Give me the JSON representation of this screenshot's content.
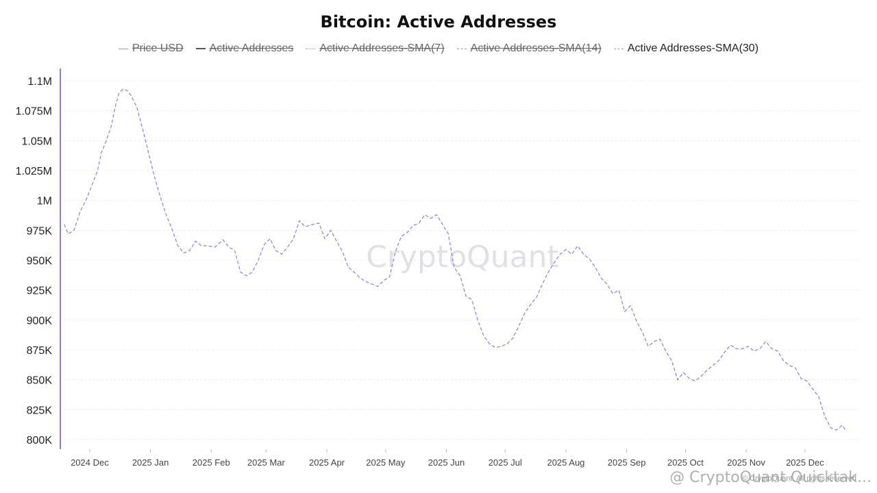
{
  "chart_data": {
    "type": "line",
    "title": "Bitcoin: Active Addresses",
    "legend": [
      {
        "name": "Price USD",
        "enabled": false,
        "style": "solid"
      },
      {
        "name": "Active Addresses",
        "enabled": false,
        "style": "solid"
      },
      {
        "name": "Active Addresses-SMA(7)",
        "enabled": false,
        "style": "dotted"
      },
      {
        "name": "Active Addresses-SMA(14)",
        "enabled": false,
        "style": "dashed"
      },
      {
        "name": "Active Addresses-SMA(30)",
        "enabled": true,
        "style": "dashed"
      }
    ],
    "legend_placement": "top-center",
    "grid": true,
    "ylim": [
      800000,
      1100000
    ],
    "y_ticks": [
      800000,
      825000,
      850000,
      875000,
      900000,
      925000,
      950000,
      975000,
      1000000,
      1025000,
      1050000,
      1075000,
      1100000
    ],
    "y_tick_labels": [
      "800K",
      "825K",
      "850K",
      "875K",
      "900K",
      "925K",
      "950K",
      "975K",
      "1M",
      "1.025M",
      "1.05M",
      "1.075M",
      "1.1M"
    ],
    "xlim": [
      "2024-11-16",
      "2025-12-29"
    ],
    "x_ticks": [
      "2024-12-01",
      "2025-01-01",
      "2025-02-01",
      "2025-03-01",
      "2025-04-01",
      "2025-05-01",
      "2025-06-01",
      "2025-07-01",
      "2025-08-01",
      "2025-09-01",
      "2025-10-01",
      "2025-11-01",
      "2025-12-01"
    ],
    "x_tick_labels": [
      "2024 Dec",
      "2025 Jan",
      "2025 Feb",
      "2025 Mar",
      "2025 Apr",
      "2025 May",
      "2025 Jun",
      "2025 Jul",
      "2025 Aug",
      "2025 Sep",
      "2025 Oct",
      "2025 Nov",
      "2025 Dec"
    ],
    "series": [
      {
        "name": "Active Addresses-SMA(30)",
        "color": "#8b7fe0",
        "points": [
          [
            "2024-11-18",
            980000
          ],
          [
            "2024-11-20",
            972000
          ],
          [
            "2024-11-23",
            975000
          ],
          [
            "2024-11-26",
            990000
          ],
          [
            "2024-11-29",
            1000000
          ],
          [
            "2024-12-02",
            1012000
          ],
          [
            "2024-12-05",
            1025000
          ],
          [
            "2024-12-07",
            1040000
          ],
          [
            "2024-12-09",
            1048000
          ],
          [
            "2024-12-12",
            1062000
          ],
          [
            "2024-12-14",
            1078000
          ],
          [
            "2024-12-16",
            1090000
          ],
          [
            "2024-12-18",
            1093000
          ],
          [
            "2024-12-20",
            1092000
          ],
          [
            "2024-12-22",
            1088000
          ],
          [
            "2024-12-25",
            1078000
          ],
          [
            "2024-12-28",
            1060000
          ],
          [
            "2024-12-31",
            1040000
          ],
          [
            "2025-01-03",
            1020000
          ],
          [
            "2025-01-06",
            1003000
          ],
          [
            "2025-01-09",
            988000
          ],
          [
            "2025-01-12",
            976000
          ],
          [
            "2025-01-15",
            962000
          ],
          [
            "2025-01-18",
            956000
          ],
          [
            "2025-01-21",
            958000
          ],
          [
            "2025-01-24",
            966000
          ],
          [
            "2025-01-27",
            962000
          ],
          [
            "2025-01-30",
            962000
          ],
          [
            "2025-02-03",
            961000
          ],
          [
            "2025-02-07",
            967000
          ],
          [
            "2025-02-10",
            961000
          ],
          [
            "2025-02-13",
            958000
          ],
          [
            "2025-02-16",
            940000
          ],
          [
            "2025-02-19",
            937000
          ],
          [
            "2025-02-22",
            940000
          ],
          [
            "2025-02-25",
            950000
          ],
          [
            "2025-02-28",
            963000
          ],
          [
            "2025-03-03",
            968000
          ],
          [
            "2025-03-06",
            958000
          ],
          [
            "2025-03-09",
            955000
          ],
          [
            "2025-03-12",
            961000
          ],
          [
            "2025-03-15",
            968000
          ],
          [
            "2025-03-18",
            983000
          ],
          [
            "2025-03-21",
            978000
          ],
          [
            "2025-03-25",
            980000
          ],
          [
            "2025-03-28",
            981000
          ],
          [
            "2025-03-31",
            968000
          ],
          [
            "2025-04-03",
            975000
          ],
          [
            "2025-04-06",
            966000
          ],
          [
            "2025-04-09",
            957000
          ],
          [
            "2025-04-12",
            944000
          ],
          [
            "2025-04-15",
            940000
          ],
          [
            "2025-04-18",
            935000
          ],
          [
            "2025-04-21",
            932000
          ],
          [
            "2025-04-24",
            930000
          ],
          [
            "2025-04-27",
            928000
          ],
          [
            "2025-04-30",
            933000
          ],
          [
            "2025-05-03",
            936000
          ],
          [
            "2025-05-06",
            957000
          ],
          [
            "2025-05-09",
            970000
          ],
          [
            "2025-05-12",
            973000
          ],
          [
            "2025-05-15",
            979000
          ],
          [
            "2025-05-18",
            981000
          ],
          [
            "2025-05-21",
            988000
          ],
          [
            "2025-05-24",
            985000
          ],
          [
            "2025-05-27",
            988000
          ],
          [
            "2025-05-30",
            980000
          ],
          [
            "2025-06-02",
            972000
          ],
          [
            "2025-06-05",
            944000
          ],
          [
            "2025-06-08",
            937000
          ],
          [
            "2025-06-11",
            920000
          ],
          [
            "2025-06-14",
            917000
          ],
          [
            "2025-06-17",
            900000
          ],
          [
            "2025-06-20",
            887000
          ],
          [
            "2025-06-23",
            880000
          ],
          [
            "2025-06-26",
            877000
          ],
          [
            "2025-06-29",
            878000
          ],
          [
            "2025-07-02",
            880000
          ],
          [
            "2025-07-05",
            885000
          ],
          [
            "2025-07-08",
            895000
          ],
          [
            "2025-07-11",
            906000
          ],
          [
            "2025-07-14",
            913000
          ],
          [
            "2025-07-17",
            919000
          ],
          [
            "2025-07-20",
            930000
          ],
          [
            "2025-07-23",
            940000
          ],
          [
            "2025-07-26",
            948000
          ],
          [
            "2025-07-29",
            955000
          ],
          [
            "2025-08-01",
            959000
          ],
          [
            "2025-08-04",
            955000
          ],
          [
            "2025-08-07",
            962000
          ],
          [
            "2025-08-10",
            955000
          ],
          [
            "2025-08-13",
            951000
          ],
          [
            "2025-08-16",
            944000
          ],
          [
            "2025-08-19",
            935000
          ],
          [
            "2025-08-22",
            930000
          ],
          [
            "2025-08-25",
            922000
          ],
          [
            "2025-08-28",
            925000
          ],
          [
            "2025-08-31",
            907000
          ],
          [
            "2025-09-03",
            912000
          ],
          [
            "2025-09-06",
            899000
          ],
          [
            "2025-09-09",
            890000
          ],
          [
            "2025-09-12",
            878000
          ],
          [
            "2025-09-15",
            882000
          ],
          [
            "2025-09-18",
            884000
          ],
          [
            "2025-09-21",
            874000
          ],
          [
            "2025-09-24",
            866000
          ],
          [
            "2025-09-27",
            850000
          ],
          [
            "2025-09-30",
            856000
          ],
          [
            "2025-10-03",
            851000
          ],
          [
            "2025-10-06",
            849000
          ],
          [
            "2025-10-09",
            853000
          ],
          [
            "2025-10-12",
            858000
          ],
          [
            "2025-10-15",
            862000
          ],
          [
            "2025-10-18",
            866000
          ],
          [
            "2025-10-21",
            873000
          ],
          [
            "2025-10-24",
            879000
          ],
          [
            "2025-10-27",
            876000
          ],
          [
            "2025-10-30",
            876000
          ],
          [
            "2025-11-02",
            878000
          ],
          [
            "2025-11-05",
            874000
          ],
          [
            "2025-11-08",
            876000
          ],
          [
            "2025-11-11",
            882000
          ],
          [
            "2025-11-14",
            876000
          ],
          [
            "2025-11-17",
            874000
          ],
          [
            "2025-11-20",
            866000
          ],
          [
            "2025-11-23",
            862000
          ],
          [
            "2025-11-26",
            860000
          ],
          [
            "2025-11-29",
            851000
          ],
          [
            "2025-12-02",
            849000
          ],
          [
            "2025-12-05",
            842000
          ],
          [
            "2025-12-08",
            836000
          ],
          [
            "2025-12-11",
            820000
          ],
          [
            "2025-12-14",
            810000
          ],
          [
            "2025-12-17",
            808000
          ],
          [
            "2025-12-20",
            812000
          ],
          [
            "2025-12-22",
            807000
          ]
        ]
      }
    ]
  },
  "watermark": "CryptoQuant",
  "credit": "@ CryptoQuant Quicktak...",
  "copyright": "© CryptoQuant. All rights reserved",
  "colors": {
    "line": "#8b7fe0",
    "axis": "#8b7fe0",
    "grid": "#ececec"
  }
}
